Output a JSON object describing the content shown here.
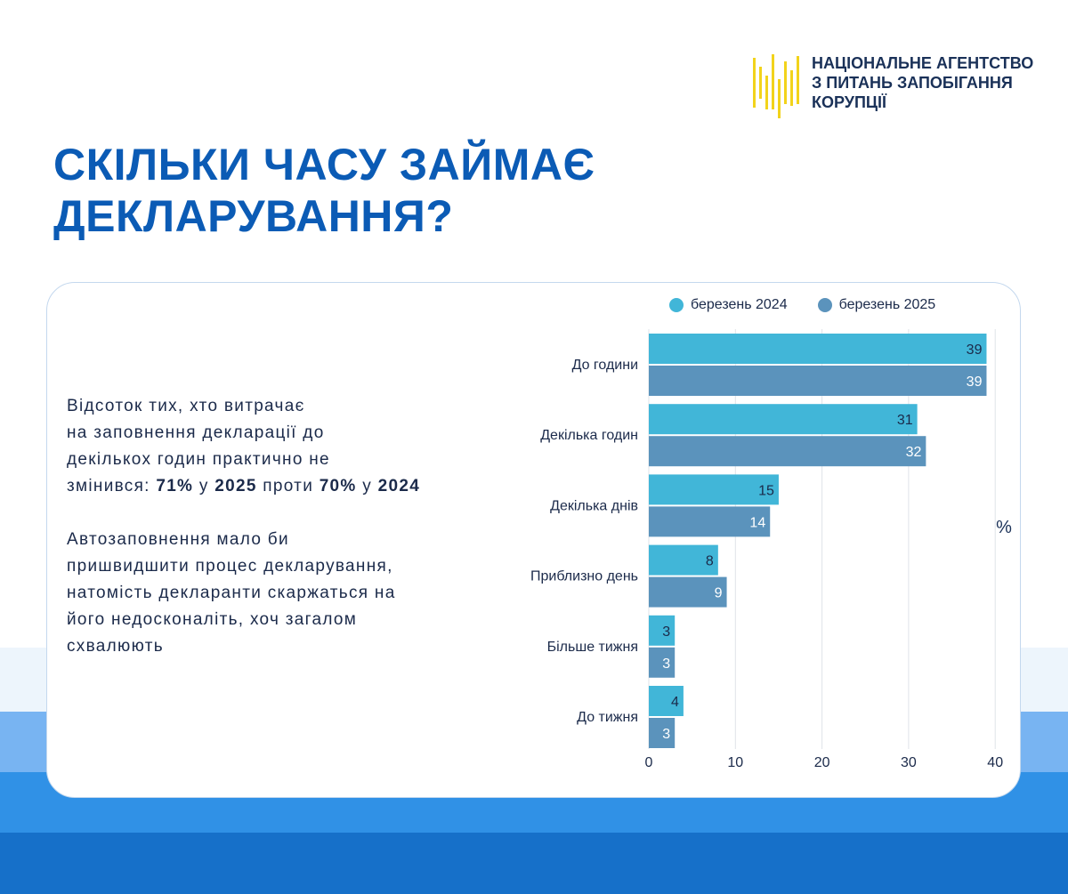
{
  "org": {
    "line1": "НАЦІОНАЛЬНЕ АГЕНТСТВО",
    "line2": "З ПИТАНЬ ЗАПОБІГАННЯ",
    "line3": "КОРУПЦІЇ"
  },
  "title": {
    "line1": "СКІЛЬКИ ЧАСУ ЗАЙМАЄ",
    "line2": "ДЕКЛАРУВАННЯ?"
  },
  "text": {
    "p1_line1": "Відсоток тих, хто витрачає",
    "p1_line2": "на заповнення декларації до",
    "p1_line3": "декількох годин практично не",
    "p1_l4_a": "змінився: ",
    "p1_l4_b": "71%",
    "p1_l4_c": " у ",
    "p1_l4_d": "2025",
    "p1_l4_e": " проти ",
    "p1_l4_f": "70%",
    "p1_l4_g": " у ",
    "p1_l4_h": "2024",
    "p2_line1": "Автозаповнення мало би",
    "p2_line2": "пришвидшити процес декларування,",
    "p2_line3": "натомість декларанти скаржаться на",
    "p2_line4": "його недосконаліть, хоч загалом",
    "p2_line5": "схвалюють"
  },
  "chart_data": {
    "type": "bar",
    "orientation": "horizontal",
    "categories": [
      "До години",
      "Декілька годин",
      "Декілька днів",
      "Приблизно день",
      "Більше тижня",
      "До тижня"
    ],
    "series": [
      {
        "name": "березень 2024",
        "values": [
          39,
          31,
          15,
          8,
          3,
          4
        ],
        "color": "#41b6d8"
      },
      {
        "name": "березень 2025",
        "values": [
          39,
          32,
          14,
          9,
          3,
          3
        ],
        "color": "#5b93bc"
      }
    ],
    "xticks": [
      "0",
      "10",
      "20",
      "30",
      "40"
    ],
    "xlim": [
      0,
      40
    ],
    "unit_label": "%",
    "grid": true,
    "legend_position": "top"
  },
  "colors": {
    "title": "#0b5bb5",
    "text": "#1b2a4a",
    "logo_yellow": "#f2d31b",
    "grid": "#dfe3e8"
  }
}
